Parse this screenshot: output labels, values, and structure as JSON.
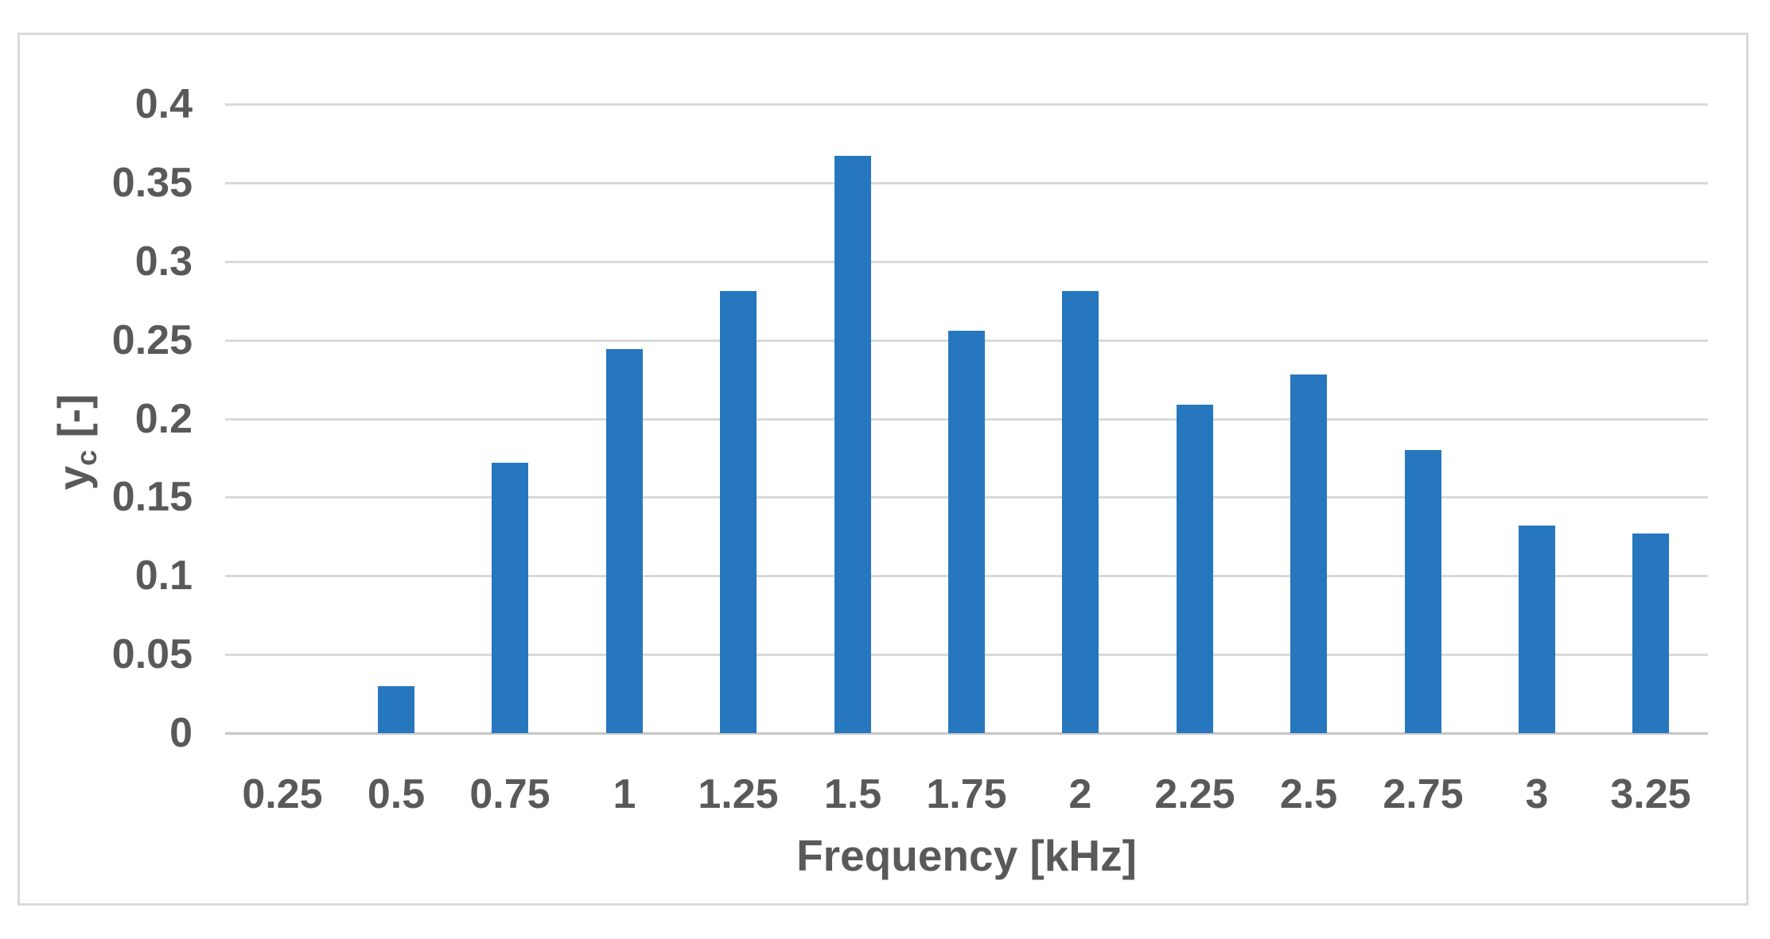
{
  "colors": {
    "bar": "#2777BE",
    "gridline": "#D9D9D9",
    "axis_line": "#C6C6C6",
    "text": "#595959",
    "frame_border": "#D9D9D9",
    "background": "#FFFFFF"
  },
  "chart_data": {
    "type": "bar",
    "title": "",
    "categories": [
      "0.25",
      "0.5",
      "0.75",
      "1",
      "1.25",
      "1.5",
      "1.75",
      "2",
      "2.25",
      "2.5",
      "2.75",
      "3",
      "3.25"
    ],
    "values": [
      0,
      0.03,
      0.172,
      0.244,
      0.281,
      0.367,
      0.256,
      0.281,
      0.209,
      0.228,
      0.18,
      0.132,
      0.127
    ],
    "series_name": "",
    "xlabel": "Frequency [kHz]",
    "ylabel": "yc [-]",
    "ylabel_parts": {
      "base": "y",
      "sub": "c",
      "unit": " [-]"
    },
    "y_ticks": [
      "0",
      "0.05",
      "0.1",
      "0.15",
      "0.2",
      "0.25",
      "0.3",
      "0.35",
      "0.4"
    ],
    "ylim": [
      0,
      0.4
    ],
    "xlim_categories": true,
    "grid": "horizontal",
    "legend": "none",
    "bar_gap_ratio": 0.68
  }
}
